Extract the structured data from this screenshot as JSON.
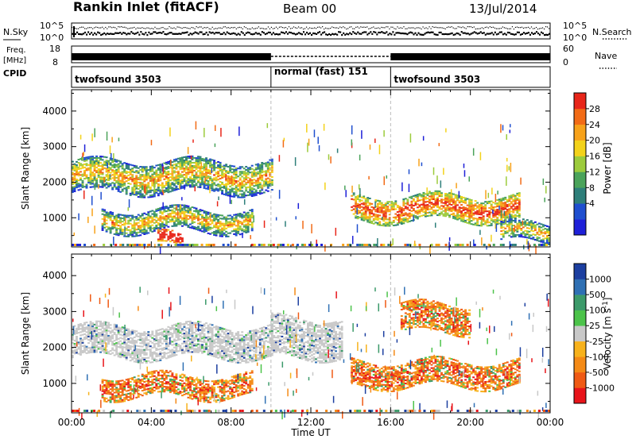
{
  "header": {
    "title": "Rankin Inlet (fitACF)",
    "beam": "Beam 00",
    "date": "13/Jul/2014"
  },
  "strip_panels": {
    "nsky_label": "N.Sky",
    "nsearch_label": "N.Search",
    "nsky_ticks": [
      "10^5",
      "10^0"
    ],
    "nsearch_ticks": [
      "10^5",
      "10^0"
    ],
    "freq_label_1": "Freq.",
    "freq_label_2": "[MHz]",
    "freq_ticks": [
      "18",
      "8"
    ],
    "nave_label": "Nave",
    "nave_ticks": [
      "60",
      "0"
    ],
    "cpid_label": "CPID",
    "modes": [
      {
        "name": "twofsound 3503",
        "start": 0,
        "end": 10
      },
      {
        "name": "normal (fast) 151",
        "start": 10,
        "end": 16
      },
      {
        "name": "twofsound 3503",
        "start": 16,
        "end": 24
      }
    ]
  },
  "chart_data": [
    {
      "type": "heatmap",
      "panel": "power",
      "ylabel": "Slant Range [km]",
      "xlabel": "Time UT",
      "x_range_hours": [
        0,
        24
      ],
      "xticks": [
        "00:00",
        "04:00",
        "08:00",
        "12:00",
        "16:00",
        "20:00",
        "00:00"
      ],
      "ylim": [
        180,
        4600
      ],
      "yticks": [
        1000,
        2000,
        3000,
        4000
      ],
      "colorbar": {
        "label": "Power [dB]",
        "ticks": [
          "28",
          "24",
          "20",
          "16",
          "12",
          "8",
          "4"
        ],
        "colors": [
          "#1e20d8",
          "#1f4fcf",
          "#2e7f7a",
          "#4aa35a",
          "#9ccb3c",
          "#f3d21a",
          "#f7a21a",
          "#f26b16",
          "#e8261a"
        ]
      },
      "features": [
        {
          "t_start": 0.0,
          "t_end": 10.0,
          "r_low": 1700,
          "r_high": 2600,
          "level": "12-20 dB"
        },
        {
          "t_start": 1.5,
          "t_end": 9.0,
          "r_low": 600,
          "r_high": 1200,
          "level": "8-24 dB"
        },
        {
          "t_start": 4.3,
          "t_end": 5.5,
          "r_low": 180,
          "r_high": 500,
          "level": ">28 dB"
        },
        {
          "t_start": 14.0,
          "t_end": 22.5,
          "r_low": 900,
          "r_high": 1600,
          "level": "12-28 dB"
        },
        {
          "t_start": 21.5,
          "t_end": 24.0,
          "r_low": 300,
          "r_high": 800,
          "level": "16-28 dB"
        }
      ]
    },
    {
      "type": "heatmap",
      "panel": "velocity",
      "ylabel": "Slant Range [km]",
      "xlabel": "Time UT",
      "x_range_hours": [
        0,
        24
      ],
      "xticks": [
        "00:00",
        "04:00",
        "08:00",
        "12:00",
        "16:00",
        "20:00",
        "00:00"
      ],
      "ylim": [
        180,
        4600
      ],
      "yticks": [
        1000,
        2000,
        3000,
        4000
      ],
      "colorbar": {
        "label": "Velocity [m s^-1]",
        "ticks": [
          "1000",
          "500",
          "100",
          "25",
          "-25",
          "-100",
          "-500",
          "-1000"
        ],
        "colors": [
          "#1c3fa0",
          "#2f70b4",
          "#3c9a6a",
          "#4cc34a",
          "#c8c8c8",
          "#f7b21c",
          "#f48a16",
          "#ef5a14",
          "#e8141a"
        ]
      },
      "features": [
        {
          "t_start": 0.0,
          "t_end": 10.0,
          "r_low": 1700,
          "r_high": 2600,
          "velocity": "-25 to 25 m/s"
        },
        {
          "t_start": 10.0,
          "t_end": 13.5,
          "r_low": 1700,
          "r_high": 2800,
          "velocity": "-25 to 25 m/s"
        },
        {
          "t_start": 1.5,
          "t_end": 9.0,
          "r_low": 600,
          "r_high": 1200,
          "velocity": "-100 to -500 m/s"
        },
        {
          "t_start": 14.0,
          "t_end": 22.5,
          "r_low": 900,
          "r_high": 1600,
          "velocity": "-100 to -1000 m/s"
        },
        {
          "t_start": 16.5,
          "t_end": 20.0,
          "r_low": 2400,
          "r_high": 3200,
          "velocity": "-100 to -500 m/s"
        }
      ]
    }
  ]
}
